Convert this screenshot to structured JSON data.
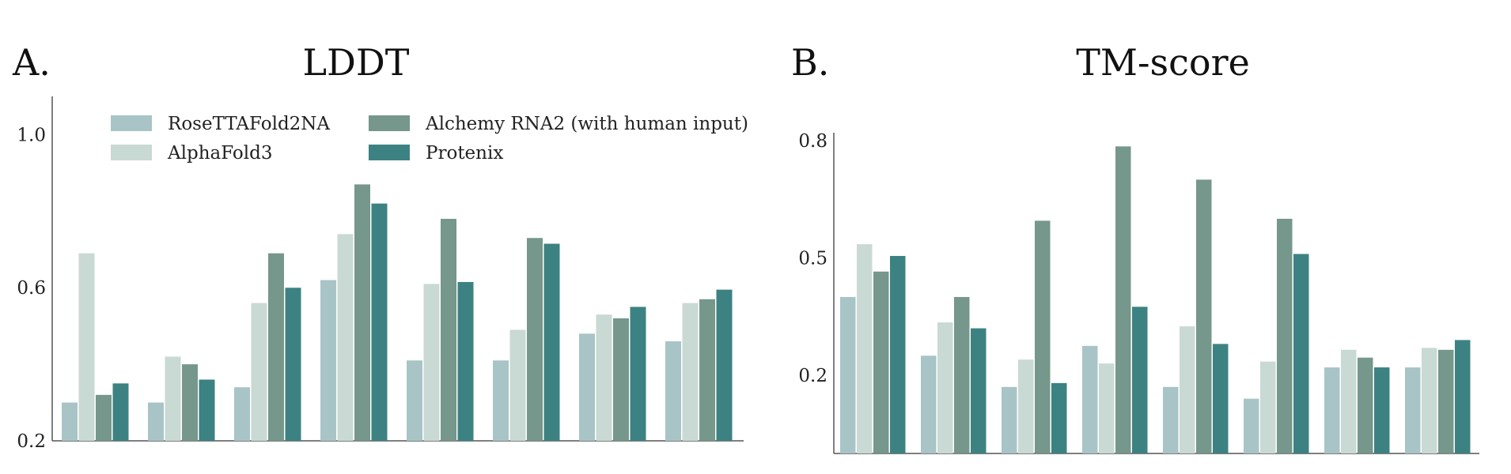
{
  "panels": {
    "a": {
      "letter": "A.",
      "title": "LDDT"
    },
    "b": {
      "letter": "B.",
      "title": "TM-score"
    }
  },
  "colors": {
    "RoseTTAFold2NA": "#a8c4c6",
    "AlphaFold3": "#c9d9d4",
    "Alchemy RNA2 (with human input)": "#76978b",
    "Protenix": "#3d8282",
    "axis": "#555555"
  },
  "legend": {
    "entries": [
      "RoseTTAFold2NA",
      "AlphaFold3",
      "Alchemy RNA2 (with human input)",
      "Protenix"
    ],
    "placement": "top"
  },
  "chart_data": [
    {
      "type": "bar",
      "title": "LDDT",
      "xlabel": "",
      "ylabel": "",
      "ylim": [
        0.2,
        1.1
      ],
      "yticks": [
        0.2,
        0.6,
        1.0
      ],
      "ytick_labels": [
        "0.2",
        "0.6",
        "1.0"
      ],
      "groups": 8,
      "series": [
        {
          "name": "RoseTTAFold2NA",
          "values": [
            0.3,
            0.3,
            0.34,
            0.62,
            0.41,
            0.41,
            0.48,
            0.46
          ]
        },
        {
          "name": "AlphaFold3",
          "values": [
            0.69,
            0.42,
            0.56,
            0.74,
            0.61,
            0.49,
            0.53,
            0.56
          ]
        },
        {
          "name": "Alchemy RNA2 (with human input)",
          "values": [
            0.32,
            0.4,
            0.69,
            0.87,
            0.78,
            0.73,
            0.52,
            0.57
          ]
        },
        {
          "name": "Protenix",
          "values": [
            0.35,
            0.36,
            0.6,
            0.82,
            0.615,
            0.715,
            0.55,
            0.595
          ]
        }
      ]
    },
    {
      "type": "bar",
      "title": "TM-score",
      "xlabel": "",
      "ylabel": "",
      "ylim": [
        0.0,
        0.82
      ],
      "yticks": [
        0.2,
        0.5,
        0.8
      ],
      "ytick_labels": [
        "0.2",
        "0.5",
        "0.8"
      ],
      "groups": 8,
      "series": [
        {
          "name": "RoseTTAFold2NA",
          "values": [
            0.4,
            0.25,
            0.17,
            0.275,
            0.17,
            0.14,
            0.22,
            0.22
          ]
        },
        {
          "name": "AlphaFold3",
          "values": [
            0.535,
            0.335,
            0.24,
            0.23,
            0.325,
            0.235,
            0.265,
            0.27
          ]
        },
        {
          "name": "Alchemy RNA2 (with human input)",
          "values": [
            0.465,
            0.4,
            0.595,
            0.785,
            0.7,
            0.6,
            0.245,
            0.265
          ]
        },
        {
          "name": "Protenix",
          "values": [
            0.505,
            0.32,
            0.18,
            0.375,
            0.28,
            0.51,
            0.22,
            0.29
          ]
        }
      ]
    }
  ]
}
